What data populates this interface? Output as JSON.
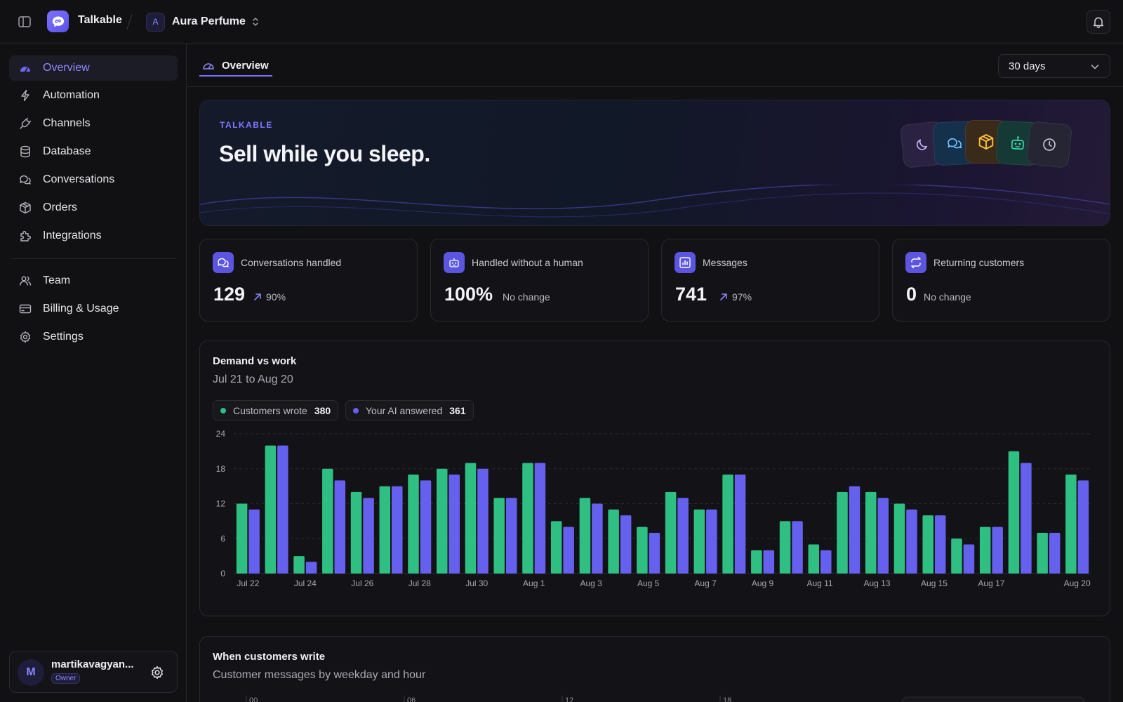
{
  "app": {
    "name": "Talkable",
    "workspace_initial": "A",
    "workspace_name": "Aura Perfume"
  },
  "sidebar": {
    "items": [
      {
        "label": "Overview",
        "icon": "dashboard-icon",
        "active": true
      },
      {
        "label": "Automation",
        "icon": "lightning-icon"
      },
      {
        "label": "Channels",
        "icon": "plug-icon"
      },
      {
        "label": "Database",
        "icon": "database-icon"
      },
      {
        "label": "Conversations",
        "icon": "chat-bubbles-icon"
      },
      {
        "label": "Orders",
        "icon": "box-icon"
      },
      {
        "label": "Integrations",
        "icon": "puzzle-icon"
      }
    ],
    "secondary": [
      {
        "label": "Team",
        "icon": "team-icon"
      },
      {
        "label": "Billing & Usage",
        "icon": "credit-card-icon"
      },
      {
        "label": "Settings",
        "icon": "gear-icon"
      }
    ],
    "user": {
      "initial": "M",
      "name": "martikavagyan...",
      "role": "Owner"
    }
  },
  "main": {
    "tab": "Overview",
    "range": "30 days",
    "hero": {
      "kicker": "TALKABLE",
      "title": "Sell while you sleep."
    },
    "stats": [
      {
        "label": "Conversations handled",
        "value": "129",
        "delta": "90%",
        "trend": "up"
      },
      {
        "label": "Handled without a human",
        "value": "100%",
        "delta": "No change",
        "trend": "none"
      },
      {
        "label": "Messages",
        "value": "741",
        "delta": "97%",
        "trend": "up"
      },
      {
        "label": "Returning customers",
        "value": "0",
        "delta": "No change",
        "trend": "none"
      }
    ],
    "demand_card": {
      "title": "Demand vs work",
      "subtitle": "Jul 21 to Aug 20",
      "legend": [
        {
          "label": "Customers wrote",
          "total": "380",
          "color": "#2fbf83"
        },
        {
          "label": "Your AI answered",
          "total": "361",
          "color": "#6660ee"
        }
      ]
    },
    "heat_card": {
      "title": "When customers write",
      "subtitle": "Customer messages by weekday and hour",
      "hour_ticks": [
        "00",
        "06",
        "12",
        "18"
      ]
    }
  },
  "chart_data": {
    "type": "bar",
    "categories": [
      "Jul 22",
      "Jul 23",
      "Jul 24",
      "Jul 25",
      "Jul 26",
      "Jul 27",
      "Jul 28",
      "Jul 29",
      "Jul 30",
      "Jul 31",
      "Aug 1",
      "Aug 2",
      "Aug 3",
      "Aug 4",
      "Aug 5",
      "Aug 6",
      "Aug 7",
      "Aug 8",
      "Aug 9",
      "Aug 10",
      "Aug 11",
      "Aug 12",
      "Aug 13",
      "Aug 14",
      "Aug 15",
      "Aug 16",
      "Aug 17",
      "Aug 18",
      "Aug 19",
      "Aug 20"
    ],
    "x_tick_labels": [
      "Jul 22",
      "Jul 24",
      "Jul 26",
      "Jul 28",
      "Jul 30",
      "Aug 1",
      "Aug 3",
      "Aug 5",
      "Aug 7",
      "Aug 9",
      "Aug 11",
      "Aug 13",
      "Aug 15",
      "Aug 17",
      "Aug 20"
    ],
    "series": [
      {
        "name": "Customers wrote",
        "color": "#2fbf83",
        "values": [
          12,
          22,
          3,
          18,
          14,
          15,
          17,
          18,
          19,
          13,
          19,
          9,
          13,
          11,
          8,
          14,
          11,
          17,
          4,
          9,
          5,
          14,
          14,
          12,
          10,
          6,
          8,
          21,
          7,
          17
        ]
      },
      {
        "name": "Your AI answered",
        "color": "#6660ee",
        "values": [
          11,
          22,
          2,
          16,
          13,
          15,
          16,
          17,
          18,
          13,
          19,
          8,
          12,
          10,
          7,
          13,
          11,
          17,
          4,
          9,
          4,
          15,
          13,
          11,
          10,
          5,
          8,
          19,
          7,
          16
        ]
      }
    ],
    "ylim": [
      0,
      24
    ],
    "yticks": [
      0,
      6,
      12,
      18,
      24
    ],
    "grid": true
  }
}
